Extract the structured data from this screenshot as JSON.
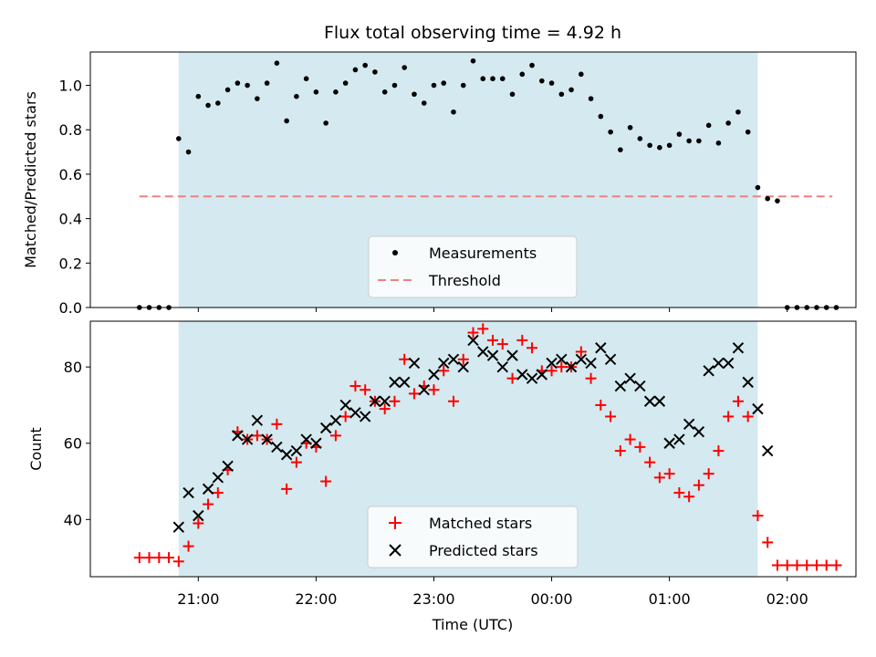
{
  "chart_data": [
    {
      "type": "scatter",
      "title": "Flux total observing time = 4.92 h",
      "xlabel": "",
      "ylabel": "Matched/Predicted stars",
      "ylim": [
        0,
        1.15
      ],
      "yticks": [
        "0.0",
        "0.2",
        "0.4",
        "0.6",
        "0.8",
        "1.0"
      ],
      "shaded_region": {
        "start": "20:50",
        "end": "01:45",
        "color": "#d4eaf0"
      },
      "threshold": {
        "name": "Threshold",
        "value": 0.5,
        "from": "20:30",
        "to": "02:23",
        "color": "#f08080"
      },
      "legend": {
        "position": "lower center",
        "entries": [
          "Measurements",
          "Threshold"
        ]
      },
      "series": [
        {
          "name": "Measurements",
          "color": "#000000",
          "marker": "dot",
          "x": [
            "20:30",
            "20:35",
            "20:40",
            "20:45",
            "20:50",
            "20:55",
            "21:00",
            "21:05",
            "21:10",
            "21:15",
            "21:20",
            "21:25",
            "21:30",
            "21:35",
            "21:40",
            "21:45",
            "21:50",
            "21:55",
            "22:00",
            "22:05",
            "22:10",
            "22:15",
            "22:20",
            "22:25",
            "22:30",
            "22:35",
            "22:40",
            "22:45",
            "22:50",
            "22:55",
            "23:00",
            "23:05",
            "23:10",
            "23:15",
            "23:20",
            "23:25",
            "23:30",
            "23:35",
            "23:40",
            "23:45",
            "23:50",
            "23:55",
            "00:00",
            "00:05",
            "00:10",
            "00:15",
            "00:20",
            "00:25",
            "00:30",
            "00:35",
            "00:40",
            "00:45",
            "00:50",
            "00:55",
            "01:00",
            "01:05",
            "01:10",
            "01:15",
            "01:20",
            "01:25",
            "01:30",
            "01:35",
            "01:40",
            "01:45",
            "01:50",
            "01:55",
            "02:00",
            "02:05",
            "02:10",
            "02:15",
            "02:20",
            "02:25"
          ],
          "y": [
            0,
            0,
            0,
            0,
            0.76,
            0.7,
            0.95,
            0.91,
            0.92,
            0.98,
            1.01,
            1.0,
            0.94,
            1.01,
            1.1,
            0.84,
            0.95,
            1.03,
            0.97,
            0.83,
            0.97,
            1.01,
            1.07,
            1.09,
            1.06,
            0.97,
            1.0,
            1.08,
            0.96,
            0.92,
            1.0,
            1.01,
            0.88,
            1.0,
            1.11,
            1.03,
            1.03,
            1.03,
            0.96,
            1.05,
            1.09,
            1.02,
            1.01,
            0.96,
            0.98,
            1.05,
            0.94,
            0.86,
            0.79,
            0.71,
            0.81,
            0.76,
            0.73,
            0.72,
            0.73,
            0.78,
            0.75,
            0.75,
            0.82,
            0.74,
            0.83,
            0.88,
            0.79,
            0.54,
            0.49,
            0.48,
            0,
            0,
            0,
            0,
            0,
            0
          ]
        }
      ]
    },
    {
      "type": "scatter",
      "title": "",
      "xlabel": "Time (UTC)",
      "ylabel": "Count",
      "ylim": [
        25,
        92
      ],
      "yticks": [
        "40",
        "60",
        "80"
      ],
      "xticks": [
        "21:00",
        "22:00",
        "23:00",
        "00:00",
        "01:00",
        "02:00"
      ],
      "shaded_region": {
        "start": "20:50",
        "end": "01:45",
        "color": "#d4eaf0"
      },
      "legend": {
        "position": "lower center",
        "entries": [
          "Matched stars",
          "Predicted stars"
        ]
      },
      "series": [
        {
          "name": "Matched stars",
          "color": "#ff0000",
          "marker": "plus",
          "x": [
            "20:30",
            "20:35",
            "20:40",
            "20:45",
            "20:50",
            "20:55",
            "21:00",
            "21:05",
            "21:10",
            "21:15",
            "21:20",
            "21:25",
            "21:30",
            "21:35",
            "21:40",
            "21:45",
            "21:50",
            "21:55",
            "22:00",
            "22:05",
            "22:10",
            "22:15",
            "22:20",
            "22:25",
            "22:30",
            "22:35",
            "22:40",
            "22:45",
            "22:50",
            "22:55",
            "23:00",
            "23:05",
            "23:10",
            "23:15",
            "23:20",
            "23:25",
            "23:30",
            "23:35",
            "23:40",
            "23:45",
            "23:50",
            "23:55",
            "00:00",
            "00:05",
            "00:10",
            "00:15",
            "00:20",
            "00:25",
            "00:30",
            "00:35",
            "00:40",
            "00:45",
            "00:50",
            "00:55",
            "01:00",
            "01:05",
            "01:10",
            "01:15",
            "01:20",
            "01:25",
            "01:30",
            "01:35",
            "01:40",
            "01:45",
            "01:50",
            "01:55",
            "02:00",
            "02:05",
            "02:10",
            "02:15",
            "02:20",
            "02:25"
          ],
          "y": [
            30,
            30,
            30,
            30,
            29,
            33,
            39,
            44,
            47,
            53,
            63,
            61,
            62,
            61,
            65,
            48,
            55,
            60,
            59,
            50,
            62,
            67,
            75,
            74,
            71,
            69,
            71,
            82,
            73,
            75,
            74,
            79,
            71,
            82,
            89,
            90,
            87,
            86,
            77,
            87,
            85,
            79,
            79,
            80,
            80,
            84,
            77,
            70,
            67,
            58,
            61,
            59,
            55,
            51,
            52,
            47,
            46,
            49,
            52,
            58,
            67,
            71,
            67,
            41,
            34,
            28,
            28,
            28,
            28,
            28,
            28,
            28
          ]
        },
        {
          "name": "Predicted stars",
          "color": "#000000",
          "marker": "x",
          "x": [
            "20:50",
            "20:55",
            "21:00",
            "21:05",
            "21:10",
            "21:15",
            "21:20",
            "21:25",
            "21:30",
            "21:35",
            "21:40",
            "21:45",
            "21:50",
            "21:55",
            "22:00",
            "22:05",
            "22:10",
            "22:15",
            "22:20",
            "22:25",
            "22:30",
            "22:35",
            "22:40",
            "22:45",
            "22:50",
            "22:55",
            "23:00",
            "23:05",
            "23:10",
            "23:15",
            "23:20",
            "23:25",
            "23:30",
            "23:35",
            "23:40",
            "23:45",
            "23:50",
            "23:55",
            "00:00",
            "00:05",
            "00:10",
            "00:15",
            "00:20",
            "00:25",
            "00:30",
            "00:35",
            "00:40",
            "00:45",
            "00:50",
            "00:55",
            "01:00",
            "01:05",
            "01:10",
            "01:15",
            "01:20",
            "01:25",
            "01:30",
            "01:35",
            "01:40",
            "01:45",
            "01:50",
            "01:55"
          ],
          "y": [
            38,
            47,
            41,
            48,
            51,
            54,
            62,
            61,
            66,
            61,
            59,
            57,
            58,
            61,
            60,
            64,
            66,
            70,
            68,
            67,
            71,
            71,
            76,
            76,
            81,
            74,
            78,
            81,
            82,
            80,
            87,
            84,
            83,
            80,
            83,
            78,
            77,
            78,
            81,
            82,
            80,
            82,
            81,
            85,
            82,
            75,
            77,
            75,
            71,
            71,
            60,
            61,
            65,
            63,
            79,
            81,
            81,
            85,
            76,
            69,
            58,
            null
          ]
        }
      ]
    }
  ]
}
